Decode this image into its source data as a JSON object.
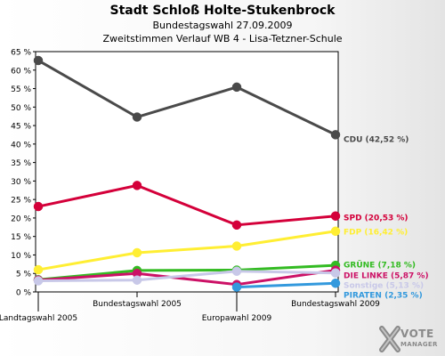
{
  "header": {
    "title": "Stadt Schloß Holte-Stukenbrock",
    "subtitle": "Bundestagswahl 27.09.2009",
    "subtitle2": "Zweitstimmen Verlauf WB 4 - Lisa-Tetzner-Schule"
  },
  "logo": {
    "line1": "VOTE",
    "line2": "MANAGER"
  },
  "chart_data": {
    "type": "line",
    "title": "Stadt Schloß Holte-Stukenbrock",
    "categories": [
      "Landtagswahl 2005",
      "Bundestagswahl 2005",
      "Europawahl 2009",
      "Bundestagswahl 2009"
    ],
    "ylim": [
      0,
      65
    ],
    "yticks": [
      "0 %",
      "5 %",
      "10 %",
      "15 %",
      "20 %",
      "25 %",
      "30 %",
      "35 %",
      "40 %",
      "45 %",
      "50 %",
      "55 %",
      "60 %",
      "65 %"
    ],
    "grid": false,
    "legend": "end-of-line labels at right",
    "series": [
      {
        "name": "CDU",
        "label": "CDU (42,52 %)",
        "color": "#4a4a4a",
        "values": [
          62.6,
          47.3,
          55.4,
          42.52
        ]
      },
      {
        "name": "SPD",
        "label": "SPD (20,53 %)",
        "color": "#d4003a",
        "values": [
          23.1,
          28.8,
          18.1,
          20.53
        ]
      },
      {
        "name": "FDP",
        "label": "FDP (16,42 %)",
        "color": "#ffee33",
        "values": [
          6.0,
          10.6,
          12.4,
          16.42
        ]
      },
      {
        "name": "GRÜNE",
        "label": "GRÜNE (7,18 %)",
        "color": "#33bb22",
        "values": [
          3.3,
          5.8,
          5.9,
          7.18
        ]
      },
      {
        "name": "DIE LINKE",
        "label": "DIE LINKE (5,87 %)",
        "color": "#cc1166",
        "values": [
          3.2,
          5.0,
          2.0,
          5.87
        ]
      },
      {
        "name": "Sonstige",
        "label": "Sonstige (5,13 %)",
        "color": "#c8c8e8",
        "values": [
          3.0,
          3.2,
          5.6,
          5.13
        ]
      },
      {
        "name": "PIRATEN",
        "label": "PIRATEN (2,35 %)",
        "color": "#3399dd",
        "values": [
          null,
          null,
          1.3,
          2.35
        ]
      }
    ]
  }
}
